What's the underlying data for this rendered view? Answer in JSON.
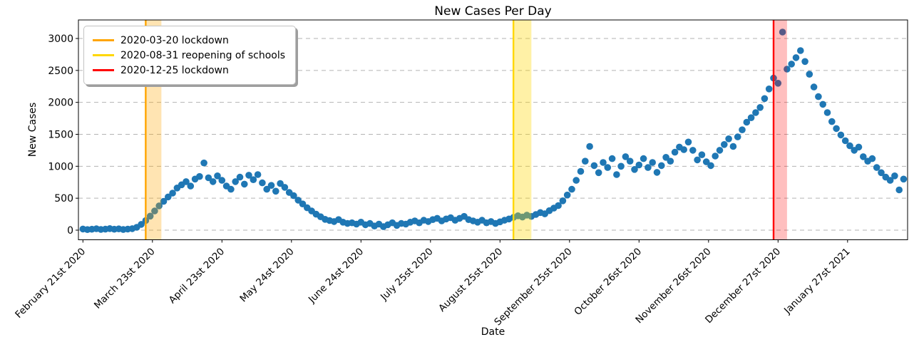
{
  "chart_data": {
    "type": "scatter",
    "title": "New Cases Per Day",
    "xlabel": "Date",
    "ylabel": "New Cases",
    "point_color": "#1f77b4",
    "grid": "horizontal-dashed",
    "grid_color": "#b3b3b3",
    "legend_position": "upper-left",
    "y_ticks": [
      0,
      500,
      1000,
      1500,
      2000,
      2500,
      3000
    ],
    "ylim": [
      -160,
      3290
    ],
    "x_tick_labels": [
      "February 21st 2020",
      "March 23st 2020",
      "April 23st 2020",
      "May 24st 2020",
      "June 24st 2020",
      "July 25st 2020",
      "August 25st 2020",
      "September 25st 2020",
      "October 26st 2020",
      "November 26st 2020",
      "December 27st 2020",
      "January 27st 2021"
    ],
    "x_unit": "days since first tick (February 21st 2020)",
    "x_tick_days": [
      0,
      31,
      62,
      93,
      124,
      155,
      186,
      217,
      248,
      279,
      310,
      341
    ],
    "events": [
      {
        "label": "2020-03-20 lockdown",
        "color": "#FFA500",
        "line_day": 28,
        "band_end_day": 35,
        "band_alpha": 0.3
      },
      {
        "label": "2020-08-31 reopening of schools",
        "color": "#FFD700",
        "line_day": 192,
        "band_end_day": 200,
        "band_alpha": 0.35
      },
      {
        "label": "2020-12-25 lockdown",
        "color": "#FF0000",
        "line_day": 308,
        "band_end_day": 314,
        "band_alpha": 0.25
      }
    ],
    "series": {
      "name": "new cases",
      "start_day": 0,
      "step_days": 2,
      "values": [
        18,
        9,
        15,
        22,
        11,
        16,
        25,
        14,
        20,
        10,
        17,
        23,
        45,
        90,
        150,
        220,
        300,
        380,
        450,
        520,
        580,
        660,
        710,
        760,
        690,
        800,
        840,
        1052,
        820,
        760,
        850,
        780,
        690,
        640,
        760,
        830,
        720,
        860,
        790,
        870,
        740,
        640,
        700,
        610,
        730,
        670,
        590,
        540,
        470,
        410,
        350,
        300,
        250,
        210,
        170,
        150,
        135,
        165,
        125,
        105,
        115,
        95,
        125,
        85,
        105,
        65,
        95,
        55,
        85,
        115,
        75,
        105,
        95,
        125,
        145,
        115,
        155,
        135,
        165,
        185,
        145,
        175,
        195,
        155,
        185,
        215,
        165,
        145,
        125,
        155,
        115,
        135,
        105,
        130,
        155,
        175,
        200,
        225,
        205,
        235,
        215,
        245,
        275,
        255,
        305,
        345,
        385,
        460,
        550,
        640,
        780,
        920,
        1080,
        1310,
        1010,
        900,
        1060,
        980,
        1120,
        870,
        1000,
        1150,
        1080,
        950,
        1020,
        1120,
        980,
        1060,
        905,
        1010,
        1140,
        1080,
        1220,
        1300,
        1260,
        1380,
        1250,
        1100,
        1180,
        1070,
        1010,
        1160,
        1250,
        1340,
        1430,
        1310,
        1460,
        1570,
        1690,
        1760,
        1840,
        1920,
        2060,
        2210,
        2380,
        2300,
        3100,
        2520,
        2600,
        2700,
        2810,
        2640,
        2440,
        2240,
        2090,
        1970,
        1840,
        1700,
        1590,
        1490,
        1400,
        1320,
        1250,
        1300,
        1150,
        1080,
        1120,
        980,
        900,
        830,
        780,
        850,
        630,
        800
      ]
    }
  }
}
